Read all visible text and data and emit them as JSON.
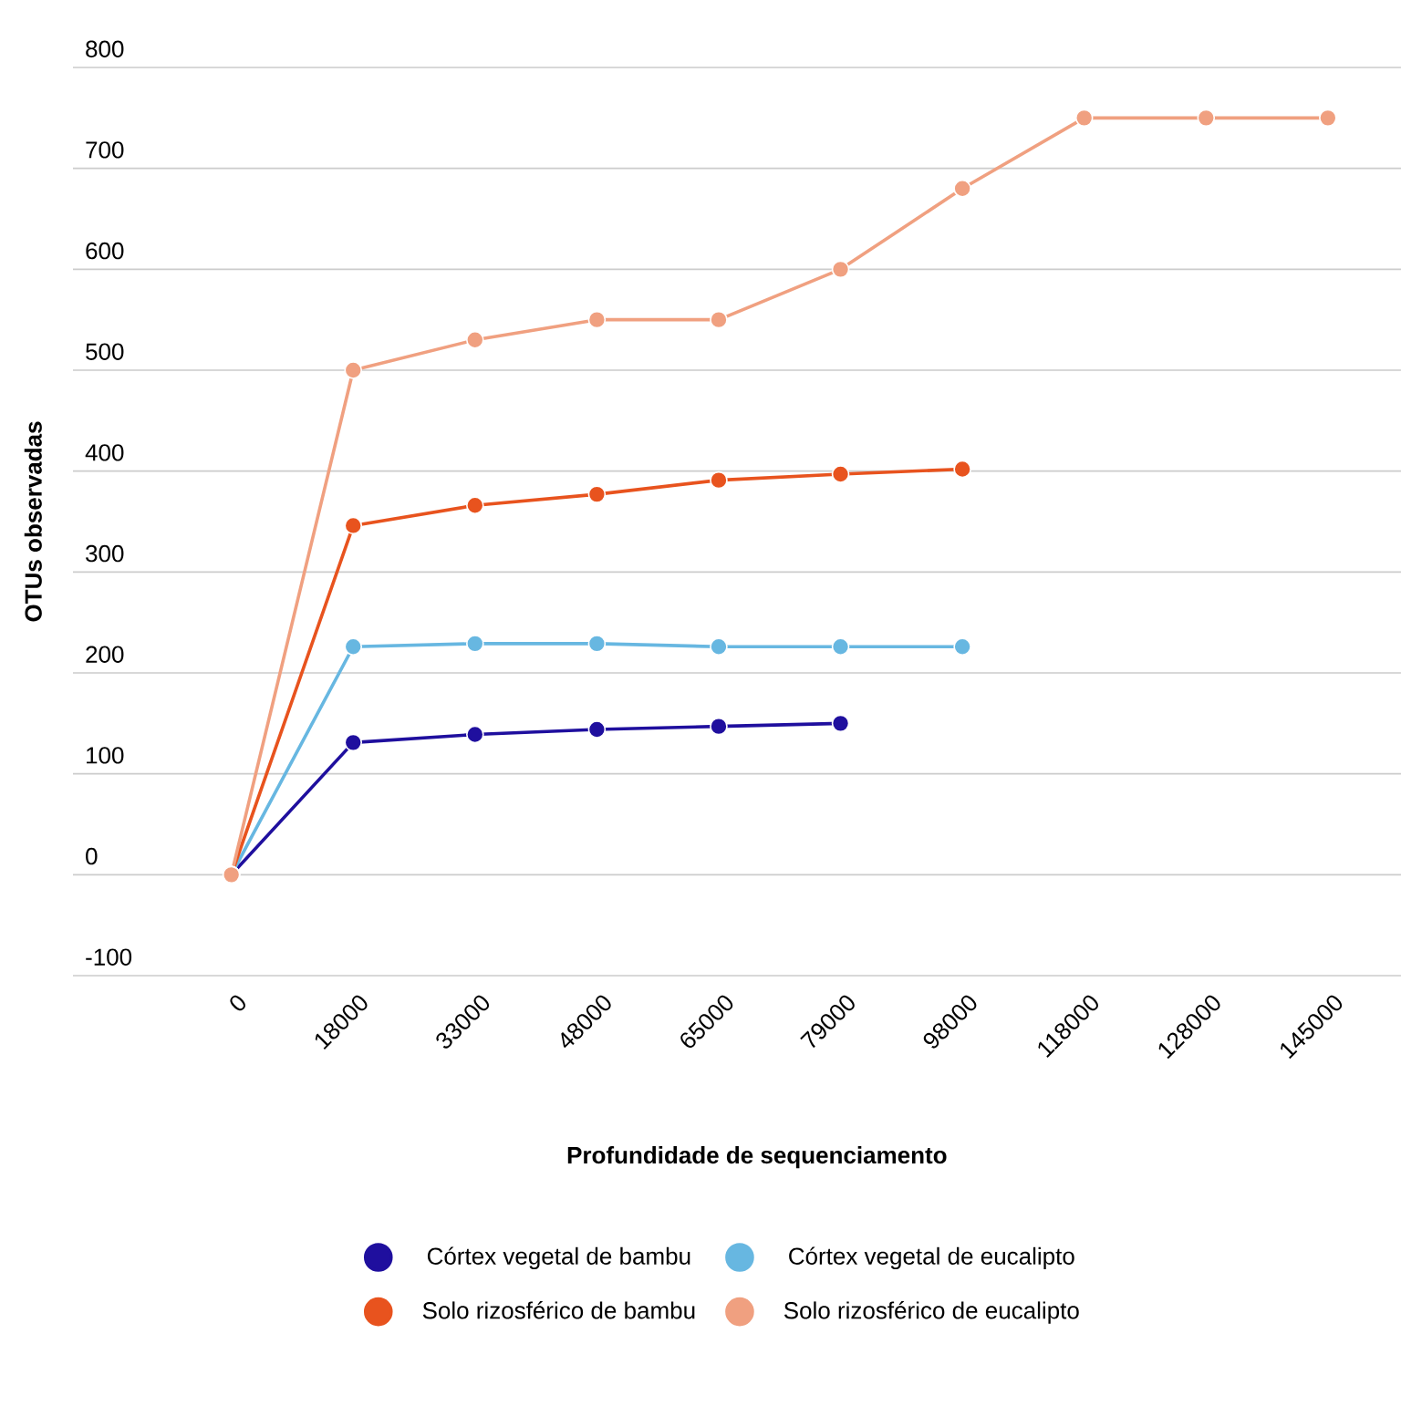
{
  "chart_data": {
    "type": "line",
    "xlabel": "Profundidade de sequenciamento",
    "ylabel": "OTUs observadas",
    "categories": [
      "0",
      "18000",
      "33000",
      "48000",
      "65000",
      "79000",
      "98000",
      "118000",
      "128000",
      "145000"
    ],
    "series": [
      {
        "name": "Córtex vegetal de bambu",
        "color": "#1f0f9e",
        "values": [
          0,
          131,
          139,
          144,
          147,
          150,
          null,
          null,
          null,
          null
        ]
      },
      {
        "name": "Córtex vegetal de eucalipto",
        "color": "#67b7e1",
        "values": [
          0,
          226,
          229,
          229,
          226,
          226,
          226,
          null,
          null,
          null
        ]
      },
      {
        "name": "Solo rizosférico de bambu",
        "color": "#e8531e",
        "values": [
          0,
          346,
          366,
          377,
          391,
          397,
          402,
          null,
          null,
          null
        ]
      },
      {
        "name": "Solo rizosférico de eucalipto",
        "color": "#f0a080",
        "values": [
          0,
          500,
          530,
          550,
          550,
          600,
          680,
          750,
          750,
          750
        ]
      }
    ],
    "ylim": [
      -100,
      800
    ],
    "yticks": [
      -100,
      0,
      100,
      200,
      300,
      400,
      500,
      600,
      700,
      800
    ],
    "grid": "y",
    "legend": "bottom",
    "marker": "circle",
    "line_style": "solid"
  }
}
